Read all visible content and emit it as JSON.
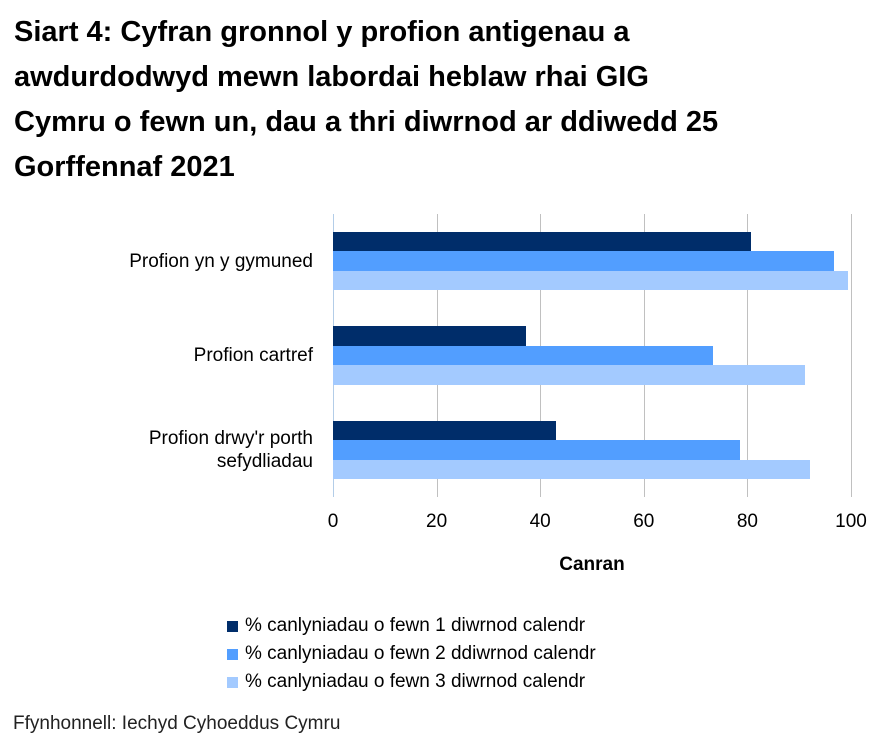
{
  "title_lines": [
    "Siart 4: Cyfran gronnol y profion antigenau a",
    "awdurdodwyd mewn labordai heblaw rhai GIG",
    "Cymru o fewn un, dau a thri diwrnod ar ddiwedd 25",
    "Gorffennaf 2021"
  ],
  "colors": {
    "series1": "#002D6A",
    "series2": "#529EFF",
    "series3": "#A3CAFF",
    "grid": "#C0C0C0"
  },
  "chart_data": {
    "type": "bar",
    "orientation": "horizontal",
    "title": "Siart 4: Cyfran gronnol y profion antigenau a awdurdodwyd mewn labordai heblaw rhai GIG Cymru o fewn un, dau a thri diwrnod ar ddiwedd 25 Gorffennaf 2021",
    "categories": [
      "Profion yn y gymuned",
      "Profion cartref",
      "Profion drwy'r porth sefydliadau"
    ],
    "category_lines": [
      [
        "Profion yn y gymuned"
      ],
      [
        "Profion cartref"
      ],
      [
        "Profion drwy'r porth",
        "sefydliadau"
      ]
    ],
    "series": [
      {
        "name": "% canlyniadau o fewn 1 diwrnod calendr",
        "values": [
          80.7,
          37.3,
          43.0
        ]
      },
      {
        "name": "% canlyniadau o fewn 2 ddiwrnod calendr",
        "values": [
          96.7,
          73.4,
          78.6
        ]
      },
      {
        "name": "% canlyniadau o fewn 3 diwrnod calendr",
        "values": [
          99.4,
          91.1,
          92.1
        ]
      }
    ],
    "xlabel": "Canran",
    "ylabel": "",
    "xlim": [
      0,
      100
    ],
    "xticks": [
      "0",
      "20",
      "40",
      "60",
      "80",
      "100"
    ],
    "grid": true,
    "legend_position": "bottom"
  },
  "source": "Ffynhonnell: Iechyd Cyhoeddus Cymru"
}
